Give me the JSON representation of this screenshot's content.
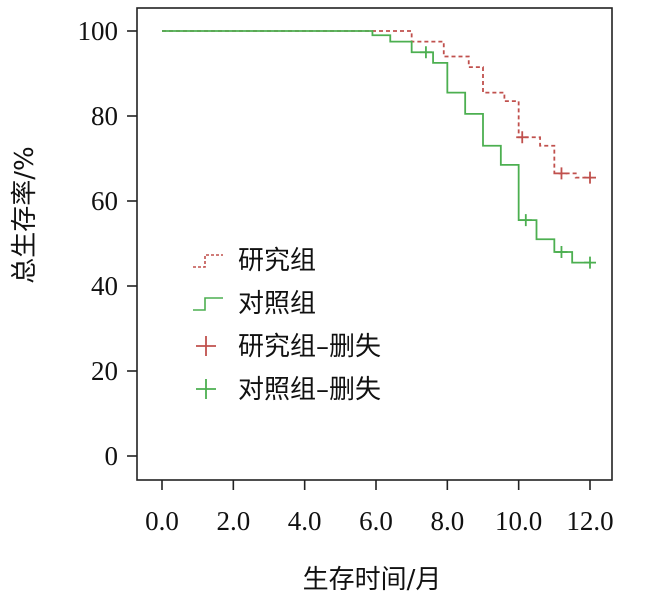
{
  "chart_data": {
    "type": "line",
    "step": true,
    "xlabel": "生存时间/月",
    "ylabel": "总生存率/%",
    "xlim": [
      0,
      12
    ],
    "ylim": [
      0,
      100
    ],
    "x_ticks": [
      "0.0",
      "2.0",
      "4.0",
      "6.0",
      "8.0",
      "10.0",
      "12.0"
    ],
    "y_ticks": [
      "0",
      "20",
      "40",
      "60",
      "80",
      "100"
    ],
    "grid": false,
    "legend_position": "center-left",
    "series": [
      {
        "name": "研究组",
        "color": "#c0504d",
        "style": "dashed",
        "x": [
          0,
          6.0,
          7.0,
          7.9,
          8.6,
          9.0,
          9.6,
          10.0,
          10.6,
          11.0,
          11.6,
          12.0
        ],
        "y": [
          100,
          100,
          97.5,
          94,
          91.5,
          85.5,
          83.5,
          75,
          73,
          66.5,
          65.5,
          65.5
        ],
        "censored": [
          {
            "x": 10.1,
            "y": 75
          },
          {
            "x": 11.2,
            "y": 66.5
          },
          {
            "x": 12.0,
            "y": 65.5
          }
        ]
      },
      {
        "name": "对照组",
        "color": "#4caf50",
        "style": "solid",
        "x": [
          0,
          5.9,
          6.4,
          7.0,
          7.6,
          8.0,
          8.5,
          9.0,
          9.5,
          10.0,
          10.5,
          11.0,
          11.5,
          12.0
        ],
        "y": [
          100,
          99,
          97.5,
          95,
          92.5,
          85.5,
          80.5,
          73,
          68.5,
          55.5,
          51,
          48,
          45.5,
          45.5
        ],
        "censored": [
          {
            "x": 7.4,
            "y": 95
          },
          {
            "x": 10.2,
            "y": 55.5
          },
          {
            "x": 11.2,
            "y": 48
          },
          {
            "x": 12.0,
            "y": 45.5
          }
        ]
      }
    ],
    "legend": [
      {
        "label": "研究组",
        "kind": "line",
        "series": 0
      },
      {
        "label": "对照组",
        "kind": "line",
        "series": 1
      },
      {
        "label": "研究组–删失",
        "kind": "censor",
        "series": 0
      },
      {
        "label": "对照组–删失",
        "kind": "censor",
        "series": 1
      }
    ]
  }
}
